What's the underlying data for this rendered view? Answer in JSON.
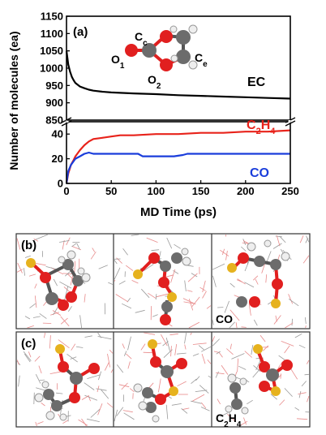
{
  "chart_data": {
    "type": "line",
    "panel_label": "(a)",
    "xlabel": "MD Time (ps)",
    "ylabel": "Number of molecules (ea)",
    "xlim": [
      0,
      250
    ],
    "x_ticks": [
      0,
      50,
      100,
      150,
      200,
      250
    ],
    "axis_break": true,
    "upper_ylim": [
      850,
      1150
    ],
    "upper_y_ticks": [
      850,
      900,
      950,
      1000,
      1050,
      1100,
      1150
    ],
    "lower_ylim": [
      0,
      50
    ],
    "lower_y_ticks": [
      0,
      20,
      40
    ],
    "grid": false,
    "series": [
      {
        "name": "EC",
        "color": "#000000",
        "segment": "upper",
        "x": [
          0,
          1,
          2,
          4,
          6,
          8,
          10,
          15,
          20,
          25,
          30,
          40,
          50,
          75,
          100,
          125,
          150,
          175,
          200,
          225,
          250
        ],
        "y": [
          1050,
          1030,
          1010,
          990,
          975,
          965,
          957,
          947,
          942,
          938,
          935,
          932,
          930,
          927,
          925,
          922,
          920,
          918,
          916,
          914,
          912
        ]
      },
      {
        "name_parts": [
          "C",
          "2",
          "H",
          "4"
        ],
        "color": "#e8231b",
        "segment": "lower",
        "x": [
          0,
          2,
          5,
          8,
          10,
          15,
          20,
          25,
          30,
          40,
          50,
          60,
          75,
          100,
          125,
          150,
          175,
          200,
          225,
          250
        ],
        "y": [
          0,
          8,
          15,
          19,
          22,
          27,
          31,
          34,
          36,
          37,
          38,
          39,
          39,
          40,
          40,
          41,
          41,
          42,
          42,
          43
        ]
      },
      {
        "name": "CO",
        "color": "#1a3ddb",
        "segment": "lower",
        "x": [
          0,
          2,
          5,
          8,
          10,
          15,
          20,
          25,
          30,
          40,
          60,
          80,
          85,
          90,
          100,
          120,
          130,
          135,
          150,
          175,
          200,
          225,
          250
        ],
        "y": [
          0,
          10,
          15,
          18,
          20,
          22,
          24,
          25,
          24,
          24,
          24,
          24,
          22,
          22,
          22,
          22,
          23,
          24,
          24,
          24,
          24,
          24,
          24
        ]
      }
    ],
    "molecule_labels": {
      "o1": "O",
      "o1_sub": "1",
      "o2": "O",
      "o2_sub": "2",
      "cc": "C",
      "cc_sub": "c",
      "ce": "C",
      "ce_sub": "e"
    }
  },
  "snapshots": {
    "row_b_label": "(b)",
    "row_c_label": "(c)",
    "co_label": "CO",
    "c2h4_label_parts": [
      "C",
      "2",
      "H",
      "4"
    ]
  },
  "colors": {
    "oxygen": "#e11f1f",
    "carbon": "#707070",
    "hydrogen": "#f2f2f2",
    "lithium": "#e6b21e",
    "network_red": "#e88a8a",
    "network_gray": "#9a9a9a"
  }
}
